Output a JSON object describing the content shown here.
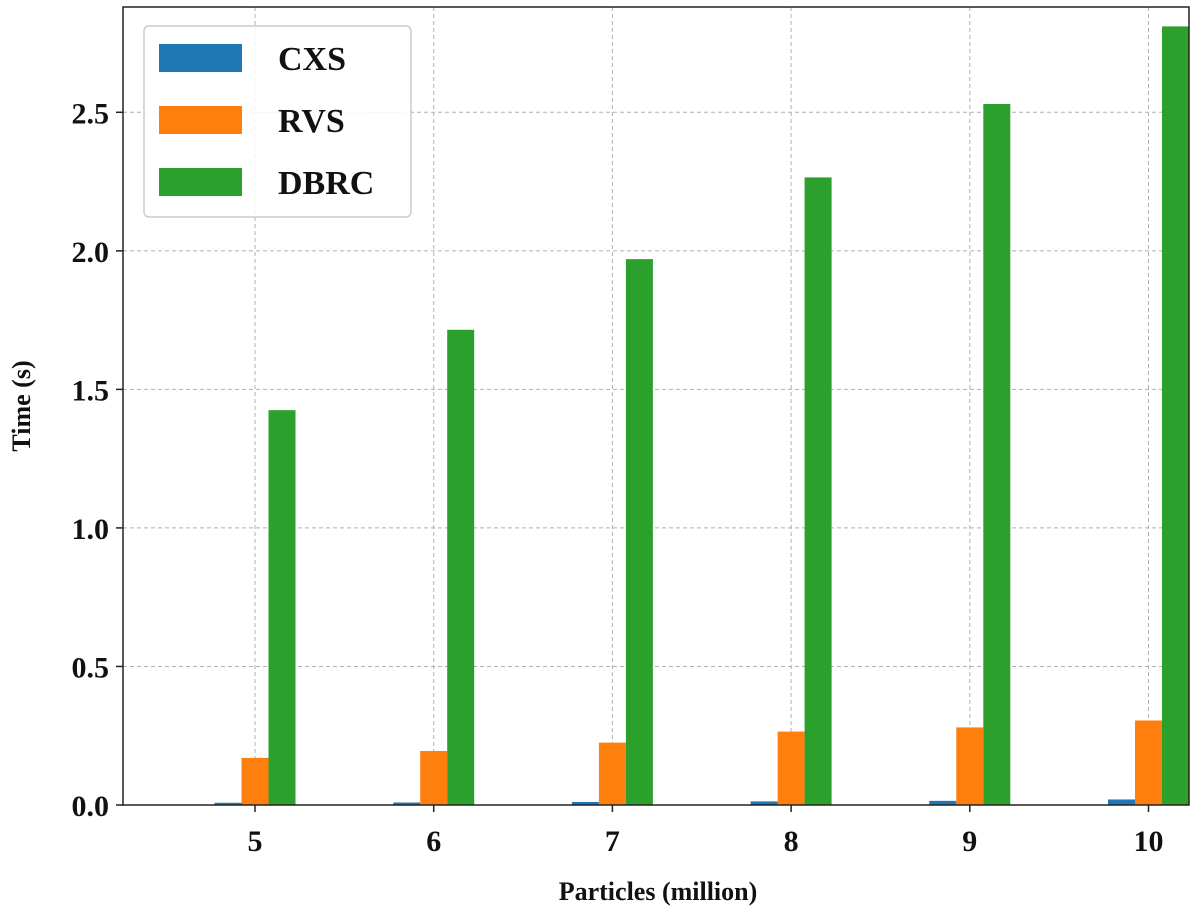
{
  "chart_data": {
    "type": "bar",
    "title": "",
    "xlabel": "Particles (million)",
    "ylabel": "Time (s)",
    "categories": [
      "5",
      "6",
      "7",
      "8",
      "9",
      "10"
    ],
    "series": [
      {
        "name": "CXS",
        "color": "#1f77b4",
        "values": [
          0.008,
          0.009,
          0.011,
          0.013,
          0.015,
          0.02
        ]
      },
      {
        "name": "RVS",
        "color": "#ff7f0e",
        "values": [
          0.17,
          0.195,
          0.225,
          0.265,
          0.28,
          0.305
        ]
      },
      {
        "name": "DBRC",
        "color": "#2ca02c",
        "values": [
          1.425,
          1.715,
          1.97,
          2.265,
          2.53,
          2.81
        ]
      }
    ],
    "ylim": [
      0,
      2.88
    ],
    "yticks": [
      0.0,
      0.5,
      1.0,
      1.5,
      2.0,
      2.5
    ],
    "ytick_labels": [
      "0.0",
      "0.5",
      "1.0",
      "1.5",
      "2.0",
      "2.5"
    ],
    "grid": true,
    "legend_position": "top-left"
  }
}
